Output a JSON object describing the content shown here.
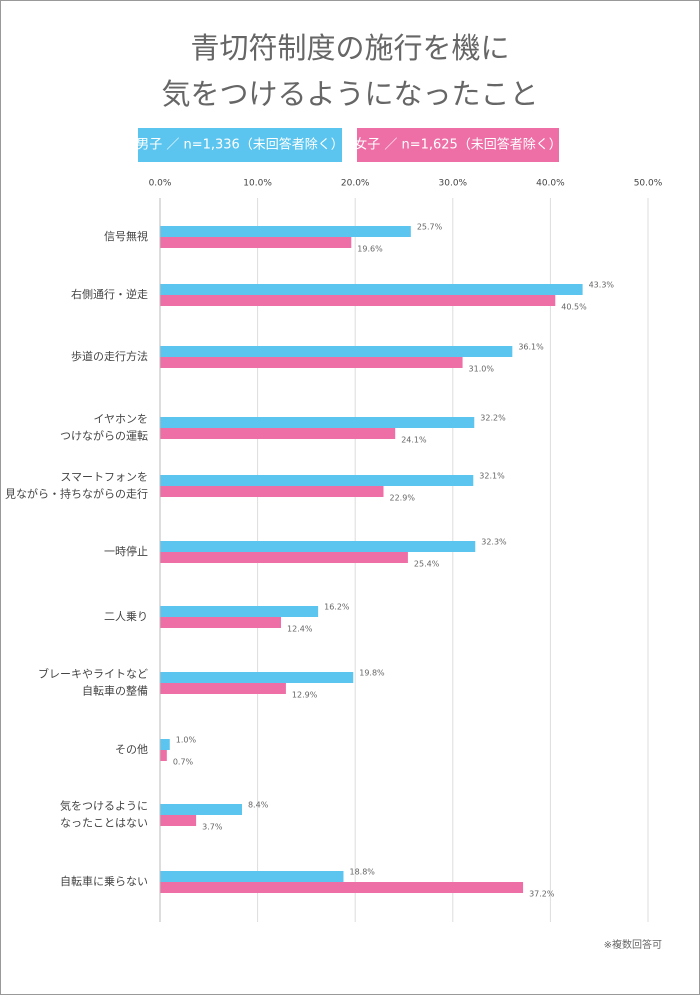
{
  "chart_data": {
    "type": "bar",
    "orientation": "horizontal",
    "title": [
      "青切符制度の施行を機に",
      "気をつけるようになったこと"
    ],
    "categories": [
      [
        "信号無視"
      ],
      [
        "右側通行・逆走"
      ],
      [
        "歩道の走行方法"
      ],
      [
        "イヤホンを",
        "つけながらの運転"
      ],
      [
        "スマートフォンを",
        "見ながら・持ちながらの走行"
      ],
      [
        "一時停止"
      ],
      [
        "二人乗り"
      ],
      [
        "ブレーキやライトなど",
        "自転車の整備"
      ],
      [
        "その他"
      ],
      [
        "気をつけるように",
        "なったことはない"
      ],
      [
        "自転車に乗らない"
      ]
    ],
    "series": [
      {
        "name": "男子 ／ n=1,336（未回答者除く）",
        "color": "#5bc5ef",
        "values": [
          25.7,
          43.3,
          36.1,
          32.2,
          32.1,
          32.3,
          16.2,
          19.8,
          1.0,
          8.4,
          18.8
        ],
        "value_labels": [
          "25.7%",
          "43.3%",
          "36.1%",
          "32.2%",
          "32.1%",
          "32.3%",
          "16.2%",
          "19.8%",
          "1.0%",
          "8.4%",
          "18.8%"
        ]
      },
      {
        "name": "女子 ／ n=1,625（未回答者除く）",
        "color": "#ee6fa6",
        "values": [
          19.6,
          40.5,
          31.0,
          24.1,
          22.9,
          25.4,
          12.4,
          12.9,
          0.7,
          3.7,
          37.2
        ],
        "value_labels": [
          "19.6%",
          "40.5%",
          "31.0%",
          "24.1%",
          "22.9%",
          "25.4%",
          "12.4%",
          "12.9%",
          "0.7%",
          "3.7%",
          "37.2%"
        ]
      }
    ],
    "xlim": [
      0,
      50
    ],
    "xticks": [
      {
        "value": 0,
        "label": "0.0%"
      },
      {
        "value": 10,
        "label": "10.0%"
      },
      {
        "value": 20,
        "label": "20.0%"
      },
      {
        "value": 30,
        "label": "30.0%"
      },
      {
        "value": 40,
        "label": "40.0%"
      },
      {
        "value": 50,
        "label": "50.0%"
      }
    ],
    "grid": true,
    "note": "※複数回答可"
  }
}
